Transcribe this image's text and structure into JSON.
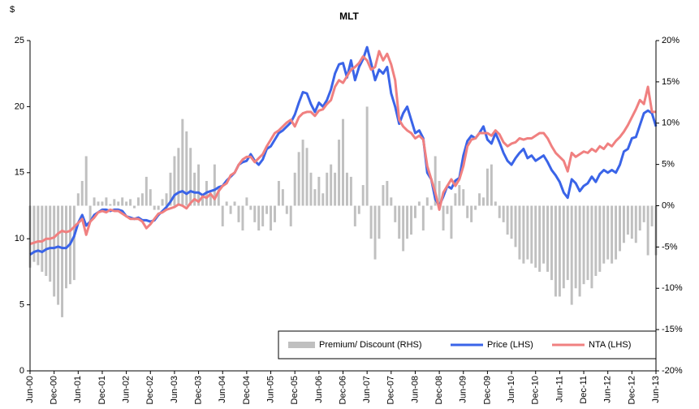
{
  "chart_data": {
    "type": "combo",
    "title": "MLT",
    "y_label": "$",
    "categories": [
      "Jun-00",
      null,
      null,
      null,
      null,
      null,
      "Dec-00",
      null,
      null,
      null,
      null,
      null,
      "Jun-01",
      null,
      null,
      null,
      null,
      null,
      "Dec-01",
      null,
      null,
      null,
      null,
      null,
      "Jun-02",
      null,
      null,
      null,
      null,
      null,
      "Dec-02",
      null,
      null,
      null,
      null,
      null,
      "Jun-03",
      null,
      null,
      null,
      null,
      null,
      "Dec-03",
      null,
      null,
      null,
      null,
      null,
      "Jun-04",
      null,
      null,
      null,
      null,
      null,
      "Dec-04",
      null,
      null,
      null,
      null,
      null,
      "Jun-05",
      null,
      null,
      null,
      null,
      null,
      "Dec-05",
      null,
      null,
      null,
      null,
      null,
      "Jun-06",
      null,
      null,
      null,
      null,
      null,
      "Dec-06",
      null,
      null,
      null,
      null,
      null,
      "Jun-07",
      null,
      null,
      null,
      null,
      null,
      "Dec-07",
      null,
      null,
      null,
      null,
      null,
      "Jun-08",
      null,
      null,
      null,
      null,
      null,
      "Dec-08",
      null,
      null,
      null,
      null,
      null,
      "Jun-09",
      null,
      null,
      null,
      null,
      null,
      "Dec-09",
      null,
      null,
      null,
      null,
      null,
      "Jun-10",
      null,
      null,
      null,
      null,
      null,
      "Dec-10",
      null,
      null,
      null,
      null,
      null,
      "Jun-11",
      null,
      null,
      null,
      null,
      null,
      "Dec-11",
      null,
      null,
      null,
      null,
      null,
      "Jun-12",
      null,
      null,
      null,
      null,
      null,
      "Dec-12",
      null,
      null,
      null,
      null,
      null,
      "Jun-13"
    ],
    "series": [
      {
        "name": "Premium/ Discount (RHS)",
        "type": "bar",
        "axis": "y2",
        "color": "#c0c0c0",
        "values": [
          -7.5,
          -6.8,
          -7.2,
          -8.0,
          -8.5,
          -9.2,
          -11.0,
          -12.0,
          -13.5,
          -10.0,
          -9.5,
          -9.0,
          1.5,
          3.0,
          6.0,
          -2.0,
          1.0,
          0.5,
          0.5,
          1.0,
          0.2,
          0.8,
          0.5,
          1.0,
          0.5,
          0.8,
          -0.3,
          1.0,
          1.5,
          3.5,
          2.0,
          -0.5,
          -0.5,
          0.8,
          1.5,
          4.0,
          6.0,
          7.0,
          10.5,
          9.0,
          7.0,
          4.0,
          5.0,
          1.0,
          3.0,
          1.5,
          5.0,
          2.0,
          -2.5,
          0.5,
          -1.0,
          0.5,
          -2.0,
          -3.0,
          1.0,
          -0.5,
          -2.0,
          -3.0,
          -2.5,
          -1.0,
          -3.0,
          -2.0,
          3.0,
          2.0,
          -1.0,
          -2.5,
          4.0,
          6.5,
          8.0,
          7.0,
          4.0,
          2.0,
          3.5,
          1.5,
          4.0,
          5.0,
          4.0,
          8.0,
          10.5,
          4.0,
          3.5,
          -2.5,
          -1.0,
          2.5,
          12.0,
          -4.0,
          -6.5,
          -4.0,
          2.5,
          3.0,
          1.0,
          -2.0,
          -4.0,
          -5.5,
          -4.0,
          -3.5,
          -1.5,
          0.5,
          -3.0,
          1.0,
          -0.5,
          6.0,
          3.0,
          -3.0,
          -1.0,
          -4.0,
          1.5,
          2.5,
          2.0,
          -1.5,
          -2.0,
          -0.5,
          1.5,
          1.0,
          4.5,
          5.0,
          0.5,
          -1.5,
          -2.0,
          -3.5,
          -4.0,
          -5.0,
          -6.5,
          -7.0,
          -6.5,
          -7.0,
          -7.5,
          -8.0,
          -7.0,
          -8.0,
          -9.0,
          -11.0,
          -11.0,
          -10.0,
          -9.0,
          -12.0,
          -10.0,
          -11.0,
          -9.5,
          -9.0,
          -10.0,
          -8.5,
          -8.0,
          -7.0,
          -6.5,
          -7.0,
          -6.5,
          -5.5,
          -4.5,
          -3.5,
          -4.0,
          -4.5,
          -3.0,
          -2.0,
          -6.0,
          -2.5,
          -6.0
        ]
      },
      {
        "name": "Price (LHS)",
        "type": "line",
        "axis": "y",
        "color": "#3a64e8",
        "values": [
          8.8,
          9.0,
          9.1,
          9.0,
          9.2,
          9.3,
          9.3,
          9.4,
          9.3,
          9.3,
          9.6,
          10.2,
          11.2,
          11.8,
          11.0,
          11.3,
          11.8,
          12.0,
          12.2,
          12.2,
          12.1,
          12.2,
          12.2,
          12.1,
          11.7,
          11.6,
          11.5,
          11.6,
          11.4,
          11.4,
          11.3,
          11.4,
          11.8,
          12.1,
          12.4,
          12.8,
          13.3,
          13.5,
          13.6,
          13.4,
          13.6,
          13.5,
          13.5,
          13.3,
          13.5,
          13.6,
          13.7,
          13.9,
          14.0,
          14.4,
          14.7,
          15.0,
          15.6,
          15.8,
          15.9,
          16.4,
          15.9,
          15.6,
          16.0,
          16.8,
          17.0,
          17.5,
          18.0,
          18.2,
          18.5,
          18.8,
          19.4,
          20.3,
          21.1,
          21.0,
          20.2,
          19.6,
          20.3,
          20.0,
          20.5,
          21.3,
          22.5,
          23.2,
          23.3,
          22.2,
          23.5,
          22.0,
          23.0,
          23.6,
          24.5,
          23.3,
          22.0,
          22.8,
          22.5,
          23.0,
          21.0,
          20.0,
          18.7,
          19.5,
          20.0,
          19.0,
          18.0,
          18.2,
          17.6,
          15.0,
          14.5,
          13.0,
          12.5,
          13.2,
          14.0,
          13.8,
          14.4,
          14.6,
          16.3,
          17.4,
          17.8,
          17.6,
          18.0,
          18.5,
          17.5,
          17.2,
          18.0,
          17.3,
          16.5,
          15.9,
          15.6,
          16.1,
          16.5,
          16.8,
          16.1,
          16.3,
          15.9,
          16.1,
          16.3,
          15.8,
          15.2,
          14.8,
          14.3,
          13.5,
          13.1,
          14.5,
          14.2,
          13.6,
          14.0,
          14.2,
          14.7,
          14.3,
          14.9,
          15.2,
          15.0,
          15.2,
          15.0,
          15.6,
          16.6,
          16.8,
          17.6,
          17.7,
          18.6,
          19.5,
          19.7,
          19.5,
          18.5
        ]
      },
      {
        "name": "NTA (LHS)",
        "type": "line",
        "axis": "y",
        "color": "#f08080",
        "values": [
          9.6,
          9.7,
          9.8,
          9.8,
          10.0,
          10.0,
          10.1,
          10.4,
          10.6,
          10.5,
          10.6,
          10.9,
          11.2,
          11.5,
          10.3,
          11.3,
          11.6,
          12.0,
          12.1,
          12.0,
          12.2,
          12.1,
          12.1,
          11.9,
          11.7,
          11.5,
          11.5,
          11.5,
          11.3,
          10.8,
          11.1,
          11.5,
          11.9,
          12.0,
          12.2,
          12.3,
          12.4,
          12.6,
          12.5,
          12.3,
          12.7,
          13.0,
          12.8,
          13.2,
          13.1,
          13.4,
          13.0,
          13.6,
          14.0,
          14.2,
          14.8,
          15.0,
          15.6,
          16.0,
          16.2,
          16.2,
          15.8,
          16.1,
          16.4,
          17.0,
          17.5,
          18.0,
          18.2,
          18.5,
          18.8,
          19.0,
          18.5,
          19.2,
          19.5,
          19.6,
          19.6,
          19.3,
          19.7,
          19.8,
          20.2,
          20.5,
          21.5,
          22.0,
          21.8,
          22.3,
          22.8,
          23.0,
          23.3,
          23.8,
          23.5,
          22.8,
          23.0,
          24.2,
          23.5,
          24.0,
          23.2,
          22.0,
          19.0,
          18.5,
          18.2,
          18.0,
          17.6,
          17.8,
          17.5,
          15.5,
          14.5,
          13.5,
          12.2,
          13.5,
          14.0,
          14.5,
          14.0,
          14.5,
          15.5,
          17.0,
          17.5,
          17.6,
          18.0,
          18.0,
          18.0,
          17.8,
          18.2,
          17.9,
          17.3,
          17.0,
          17.2,
          17.3,
          17.6,
          17.5,
          17.6,
          17.6,
          17.8,
          18.0,
          18.0,
          17.6,
          17.0,
          16.5,
          16.2,
          15.9,
          15.1,
          16.5,
          16.2,
          16.4,
          16.6,
          16.5,
          16.8,
          16.6,
          17.0,
          16.8,
          17.2,
          17.0,
          17.4,
          17.7,
          18.1,
          18.6,
          19.2,
          19.8,
          20.5,
          20.2,
          21.5,
          19.6,
          19.6
        ]
      }
    ],
    "ylim": [
      0,
      25
    ],
    "yticks": [
      0,
      5,
      10,
      15,
      20,
      25
    ],
    "y2lim": [
      -20,
      20
    ],
    "y2ticks": [
      {
        "value": -20,
        "label": "-20%"
      },
      {
        "value": -15,
        "label": "-15%"
      },
      {
        "value": -10,
        "label": "-10%"
      },
      {
        "value": -5,
        "label": "-5%"
      },
      {
        "value": 0,
        "label": "0%"
      },
      {
        "value": 5,
        "label": "5%"
      },
      {
        "value": 10,
        "label": "10%"
      },
      {
        "value": 15,
        "label": "15%"
      },
      {
        "value": 20,
        "label": "20%"
      }
    ],
    "legend": "lower right",
    "grid": false
  }
}
